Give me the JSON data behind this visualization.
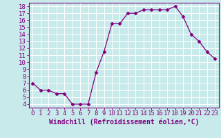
{
  "x": [
    0,
    1,
    2,
    3,
    4,
    5,
    6,
    7,
    8,
    9,
    10,
    11,
    12,
    13,
    14,
    15,
    16,
    17,
    18,
    19,
    20,
    21,
    22,
    23
  ],
  "y": [
    7.0,
    6.0,
    6.0,
    5.5,
    5.5,
    4.0,
    4.0,
    4.0,
    8.5,
    11.5,
    15.5,
    15.5,
    17.0,
    17.0,
    17.5,
    17.5,
    17.5,
    17.5,
    18.0,
    16.5,
    14.0,
    13.0,
    11.5,
    10.5
  ],
  "line_color": "#800080",
  "marker": "D",
  "marker_size": 2.5,
  "bg_color": "#c8eaea",
  "grid_color": "#ffffff",
  "xlabel": "Windchill (Refroidissement éolien,°C)",
  "xlim": [
    -0.5,
    23.5
  ],
  "ylim": [
    3.5,
    18.5
  ],
  "xticks": [
    0,
    1,
    2,
    3,
    4,
    5,
    6,
    7,
    8,
    9,
    10,
    11,
    12,
    13,
    14,
    15,
    16,
    17,
    18,
    19,
    20,
    21,
    22,
    23
  ],
  "yticks": [
    4,
    5,
    6,
    7,
    8,
    9,
    10,
    11,
    12,
    13,
    14,
    15,
    16,
    17,
    18
  ],
  "tick_color": "#800080",
  "label_color": "#800080",
  "spine_color": "#800080",
  "font_size": 6.5,
  "xlabel_fontsize": 7
}
